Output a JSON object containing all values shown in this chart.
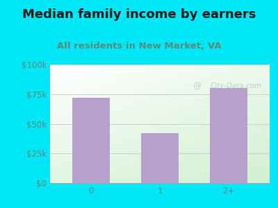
{
  "title": "Median family income by earners",
  "subtitle": "All residents in New Market, VA",
  "categories": [
    "0",
    "1",
    "2+"
  ],
  "values": [
    72000,
    42000,
    80000
  ],
  "bar_color": "#b8a0cc",
  "title_color": "#1a1a1a",
  "subtitle_color": "#5a8a7a",
  "axis_label_color": "#5a8a7a",
  "background_color": "#00e8f8",
  "ylim": [
    0,
    100000
  ],
  "yticks": [
    0,
    25000,
    50000,
    75000,
    100000
  ],
  "ytick_labels": [
    "$0",
    "$25k",
    "$50k",
    "$75k",
    "$100k"
  ],
  "watermark": "City-Data.com",
  "watermark_color": "#aec8c8",
  "title_fontsize": 13,
  "subtitle_fontsize": 9.5,
  "tick_fontsize": 8.5,
  "bar_width": 0.55
}
